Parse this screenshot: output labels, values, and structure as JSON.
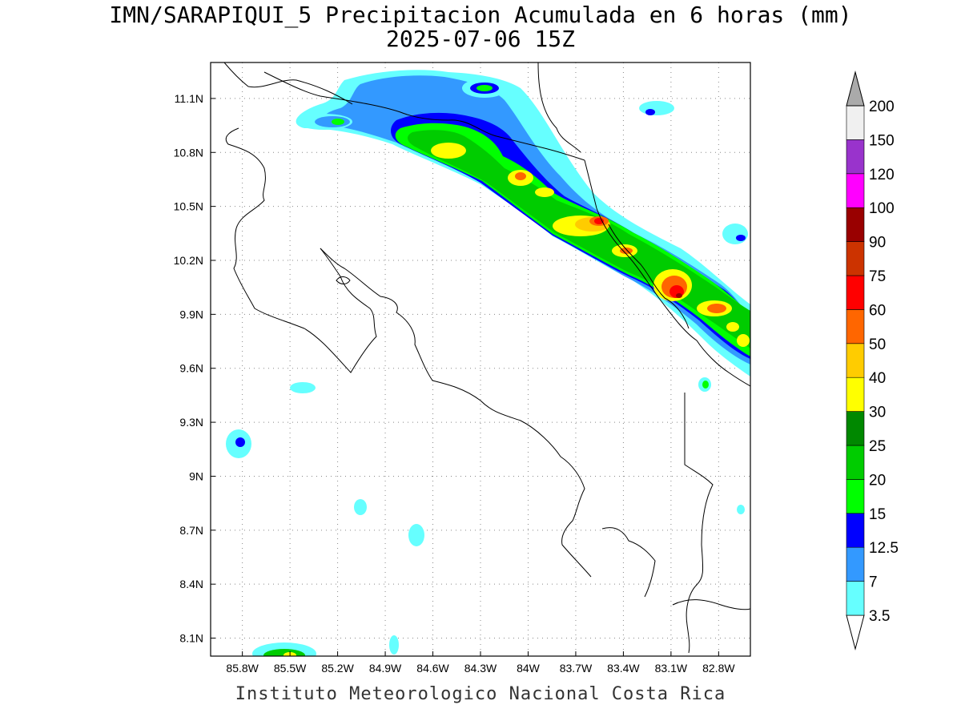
{
  "title": {
    "line1": "IMN/SARAPIQUI_5 Precipitacion Acumulada en 6 horas (mm)",
    "line2": "2025-07-06 15Z"
  },
  "credit": "Instituto Meteorologico Nacional Costa Rica",
  "map": {
    "lon_range": [
      -86.0,
      -82.6
    ],
    "lat_range": [
      8.0,
      11.3
    ],
    "lon_ticks": [
      {
        "value": -85.8,
        "label": "85.8W"
      },
      {
        "value": -85.5,
        "label": "85.5W"
      },
      {
        "value": -85.2,
        "label": "85.2W"
      },
      {
        "value": -84.9,
        "label": "84.9W"
      },
      {
        "value": -84.6,
        "label": "84.6W"
      },
      {
        "value": -84.3,
        "label": "84.3W"
      },
      {
        "value": -84.0,
        "label": "84W"
      },
      {
        "value": -83.7,
        "label": "83.7W"
      },
      {
        "value": -83.4,
        "label": "83.4W"
      },
      {
        "value": -83.1,
        "label": "83.1W"
      },
      {
        "value": -82.8,
        "label": "82.8W"
      }
    ],
    "lat_ticks": [
      {
        "value": 11.1,
        "label": "11.1N"
      },
      {
        "value": 10.8,
        "label": "10.8N"
      },
      {
        "value": 10.5,
        "label": "10.5N"
      },
      {
        "value": 10.2,
        "label": "10.2N"
      },
      {
        "value": 9.9,
        "label": "9.9N"
      },
      {
        "value": 9.6,
        "label": "9.6N"
      },
      {
        "value": 9.3,
        "label": "9.3N"
      },
      {
        "value": 9.0,
        "label": "9N"
      },
      {
        "value": 8.7,
        "label": "8.7N"
      },
      {
        "value": 8.4,
        "label": "8.4N"
      },
      {
        "value": 8.1,
        "label": "8.1N"
      }
    ],
    "grid": true
  },
  "colorbar": {
    "levels": [
      {
        "label": "3.5",
        "color": "#66ffff"
      },
      {
        "label": "7",
        "color": "#3399ff"
      },
      {
        "label": "12.5",
        "color": "#0000ff"
      },
      {
        "label": "15",
        "color": "#00ff00"
      },
      {
        "label": "20",
        "color": "#00cc00"
      },
      {
        "label": "25",
        "color": "#008800"
      },
      {
        "label": "30",
        "color": "#ffff00"
      },
      {
        "label": "40",
        "color": "#ffcc00"
      },
      {
        "label": "50",
        "color": "#ff6600"
      },
      {
        "label": "60",
        "color": "#ff0000"
      },
      {
        "label": "75",
        "color": "#cc3300"
      },
      {
        "label": "90",
        "color": "#990000"
      },
      {
        "label": "100",
        "color": "#ff00ff"
      },
      {
        "label": "120",
        "color": "#9933cc"
      },
      {
        "label": "150",
        "color": "#f0f0f0"
      },
      {
        "label": "200",
        "color": "#aaaaaa"
      }
    ]
  },
  "precip_cells": [
    {
      "lon": -84.45,
      "lat": 10.83,
      "level": 6
    },
    {
      "lon": -84.0,
      "lat": 10.66,
      "level": 9
    },
    {
      "lon": -83.53,
      "lat": 10.43,
      "level": 9
    },
    {
      "lon": -83.22,
      "lat": 10.26,
      "level": 8
    },
    {
      "lon": -82.93,
      "lat": 10.02,
      "level": 11
    },
    {
      "lon": -82.72,
      "lat": 9.94,
      "level": 8
    },
    {
      "lon": -85.5,
      "lat": 8.03,
      "level": 6
    }
  ]
}
